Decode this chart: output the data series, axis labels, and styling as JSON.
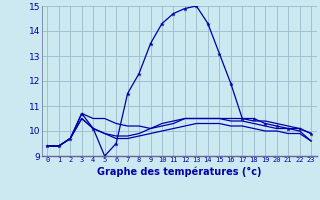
{
  "xlabel": "Graphe des températures (°c)",
  "background_color": "#cce8f0",
  "plot_bg_color": "#cce8f0",
  "grid_color": "#99bbcc",
  "line_color": "#0000aa",
  "border_color": "#666699",
  "ylim": [
    9,
    15
  ],
  "xlim": [
    0,
    23
  ],
  "yticks": [
    9,
    10,
    11,
    12,
    13,
    14,
    15
  ],
  "xticks": [
    0,
    1,
    2,
    3,
    4,
    5,
    6,
    7,
    8,
    9,
    10,
    11,
    12,
    13,
    14,
    15,
    16,
    17,
    18,
    19,
    20,
    21,
    22,
    23
  ],
  "series": [
    [
      9.4,
      9.4,
      9.7,
      10.7,
      10.1,
      9.0,
      9.5,
      11.5,
      12.3,
      13.5,
      14.3,
      14.7,
      14.9,
      15.0,
      14.3,
      13.1,
      11.9,
      10.5,
      10.5,
      10.3,
      10.2,
      10.1,
      10.1,
      9.9
    ],
    [
      9.4,
      9.4,
      9.7,
      10.7,
      10.5,
      10.5,
      10.3,
      10.2,
      10.2,
      10.1,
      10.3,
      10.4,
      10.5,
      10.5,
      10.5,
      10.5,
      10.5,
      10.5,
      10.4,
      10.4,
      10.3,
      10.2,
      10.1,
      9.9
    ],
    [
      9.4,
      9.4,
      9.7,
      10.5,
      10.1,
      9.9,
      9.8,
      9.8,
      9.9,
      10.1,
      10.2,
      10.3,
      10.5,
      10.5,
      10.5,
      10.5,
      10.4,
      10.4,
      10.3,
      10.2,
      10.1,
      10.1,
      10.0,
      9.6
    ],
    [
      9.4,
      9.4,
      9.7,
      10.5,
      10.1,
      9.9,
      9.7,
      9.7,
      9.8,
      9.9,
      10.0,
      10.1,
      10.2,
      10.3,
      10.3,
      10.3,
      10.2,
      10.2,
      10.1,
      10.0,
      10.0,
      9.9,
      9.9,
      9.6
    ]
  ]
}
